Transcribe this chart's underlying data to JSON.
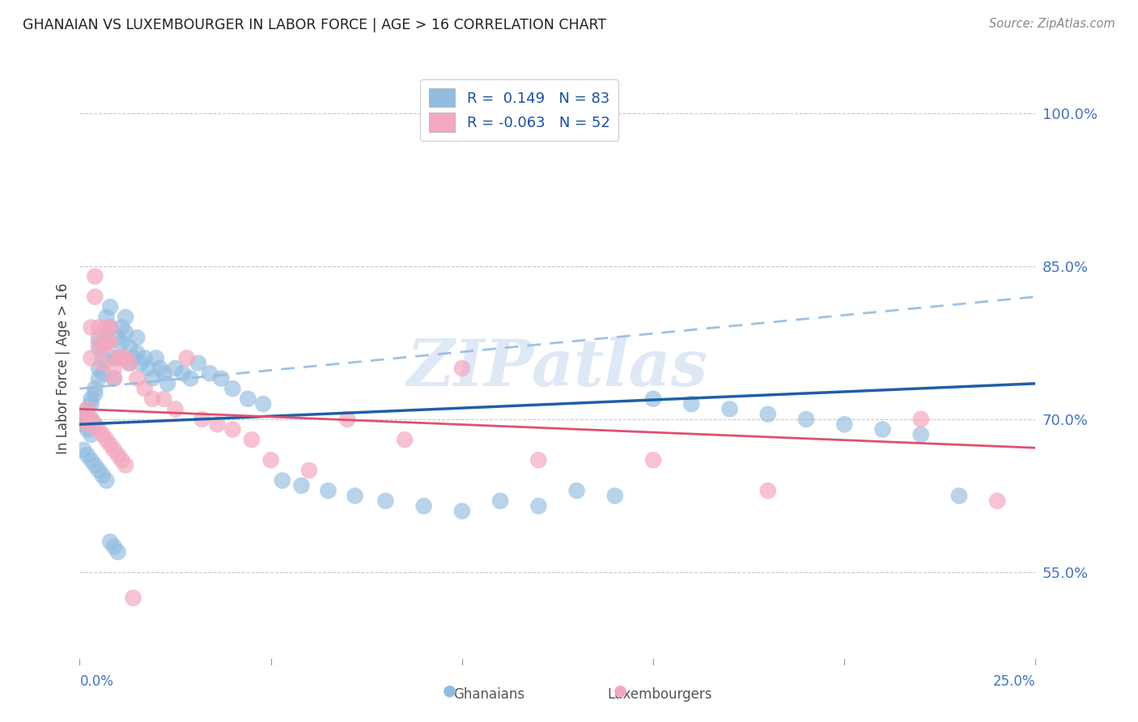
{
  "title": "GHANAIAN VS LUXEMBOURGER IN LABOR FORCE | AGE > 16 CORRELATION CHART",
  "source": "Source: ZipAtlas.com",
  "ylabel": "In Labor Force | Age > 16",
  "right_ytick_labels": [
    "100.0%",
    "85.0%",
    "70.0%",
    "55.0%"
  ],
  "right_yticks": [
    1.0,
    0.85,
    0.7,
    0.55
  ],
  "xlim": [
    0.0,
    0.25
  ],
  "ylim": [
    0.46,
    1.04
  ],
  "ghanaian_r": 0.149,
  "ghanaian_n": 83,
  "luxembourger_r": -0.063,
  "luxembourger_n": 52,
  "watermark": "ZIPatlas",
  "blue_color": "#92bce0",
  "pink_color": "#f4a8bf",
  "blue_line_color": "#1f5fa6",
  "pink_line_color": "#e05070",
  "blue_dashed_color": "#92bce0",
  "ghanaian_x": [
    0.001,
    0.001,
    0.002,
    0.002,
    0.002,
    0.003,
    0.003,
    0.003,
    0.003,
    0.004,
    0.004,
    0.004,
    0.005,
    0.005,
    0.005,
    0.005,
    0.006,
    0.006,
    0.007,
    0.007,
    0.007,
    0.008,
    0.008,
    0.009,
    0.009,
    0.01,
    0.01,
    0.011,
    0.011,
    0.012,
    0.012,
    0.013,
    0.013,
    0.014,
    0.015,
    0.015,
    0.016,
    0.017,
    0.018,
    0.019,
    0.02,
    0.021,
    0.022,
    0.023,
    0.025,
    0.027,
    0.029,
    0.031,
    0.034,
    0.037,
    0.04,
    0.044,
    0.048,
    0.053,
    0.058,
    0.065,
    0.072,
    0.08,
    0.09,
    0.1,
    0.11,
    0.12,
    0.13,
    0.14,
    0.15,
    0.16,
    0.17,
    0.18,
    0.19,
    0.2,
    0.21,
    0.22,
    0.23,
    0.001,
    0.002,
    0.003,
    0.004,
    0.005,
    0.006,
    0.007,
    0.008,
    0.009,
    0.01
  ],
  "ghanaian_y": [
    0.7,
    0.695,
    0.71,
    0.7,
    0.69,
    0.72,
    0.715,
    0.7,
    0.685,
    0.73,
    0.725,
    0.695,
    0.78,
    0.77,
    0.75,
    0.74,
    0.76,
    0.745,
    0.8,
    0.785,
    0.775,
    0.81,
    0.79,
    0.76,
    0.74,
    0.78,
    0.76,
    0.79,
    0.775,
    0.8,
    0.785,
    0.77,
    0.755,
    0.76,
    0.78,
    0.765,
    0.755,
    0.76,
    0.75,
    0.74,
    0.76,
    0.75,
    0.745,
    0.735,
    0.75,
    0.745,
    0.74,
    0.755,
    0.745,
    0.74,
    0.73,
    0.72,
    0.715,
    0.64,
    0.635,
    0.63,
    0.625,
    0.62,
    0.615,
    0.61,
    0.62,
    0.615,
    0.63,
    0.625,
    0.72,
    0.715,
    0.71,
    0.705,
    0.7,
    0.695,
    0.69,
    0.685,
    0.625,
    0.67,
    0.665,
    0.66,
    0.655,
    0.65,
    0.645,
    0.64,
    0.58,
    0.575,
    0.57
  ],
  "luxembourger_x": [
    0.001,
    0.002,
    0.002,
    0.003,
    0.003,
    0.004,
    0.004,
    0.005,
    0.005,
    0.006,
    0.006,
    0.007,
    0.007,
    0.008,
    0.008,
    0.009,
    0.009,
    0.01,
    0.011,
    0.012,
    0.013,
    0.015,
    0.017,
    0.019,
    0.022,
    0.025,
    0.028,
    0.032,
    0.036,
    0.04,
    0.045,
    0.05,
    0.06,
    0.07,
    0.085,
    0.1,
    0.12,
    0.15,
    0.18,
    0.22,
    0.24,
    0.003,
    0.004,
    0.005,
    0.006,
    0.007,
    0.008,
    0.009,
    0.01,
    0.011,
    0.012,
    0.014
  ],
  "luxembourger_y": [
    0.7,
    0.71,
    0.695,
    0.79,
    0.76,
    0.84,
    0.82,
    0.79,
    0.775,
    0.77,
    0.755,
    0.79,
    0.775,
    0.79,
    0.775,
    0.75,
    0.74,
    0.76,
    0.76,
    0.76,
    0.755,
    0.74,
    0.73,
    0.72,
    0.72,
    0.71,
    0.76,
    0.7,
    0.695,
    0.69,
    0.68,
    0.66,
    0.65,
    0.7,
    0.68,
    0.75,
    0.66,
    0.66,
    0.63,
    0.7,
    0.62,
    0.7,
    0.695,
    0.69,
    0.685,
    0.68,
    0.675,
    0.67,
    0.665,
    0.66,
    0.655,
    0.525
  ],
  "legend_r1": "R =  0.149   N = 83",
  "legend_r2": "R = -0.063   N = 52",
  "bottom_label1": "Ghanaians",
  "bottom_label2": "Luxembourgers"
}
